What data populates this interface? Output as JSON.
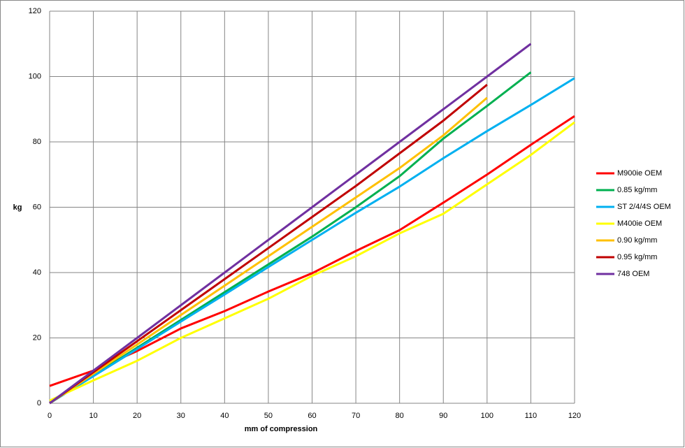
{
  "chart_data": {
    "type": "line",
    "x_label": "mm of compression",
    "y_label": "kg",
    "x": [
      0,
      10,
      20,
      30,
      40,
      50,
      60,
      70,
      80,
      90,
      100,
      110,
      120
    ],
    "xlim": [
      0,
      120
    ],
    "xticks": [
      0,
      10,
      20,
      30,
      40,
      50,
      60,
      70,
      80,
      90,
      100,
      110,
      120
    ],
    "ylim": [
      0,
      120
    ],
    "yticks": [
      0,
      20,
      40,
      60,
      80,
      100,
      120
    ],
    "grid": true,
    "legend": "right",
    "series": [
      {
        "name": "M900ie OEM",
        "color": "#ff0000",
        "values": [
          5.3,
          10,
          16,
          22.9,
          28.2,
          34.2,
          39.8,
          46.6,
          53,
          61.4,
          70,
          79.1,
          87.9
        ]
      },
      {
        "name": "0.85 kg/mm",
        "color": "#00b050",
        "values": [
          0,
          8.5,
          17,
          25.5,
          34,
          42.5,
          51,
          60,
          69.5,
          81,
          91,
          101.3,
          null
        ]
      },
      {
        "name": "ST 2/4/4S OEM",
        "color": "#00b0f0",
        "values": [
          0,
          8.3,
          16.6,
          25,
          33.3,
          41.7,
          50,
          58.3,
          66.3,
          75,
          83.3,
          91.3,
          99.5
        ]
      },
      {
        "name": "M400ie OEM",
        "color": "#ffff00",
        "values": [
          0.8,
          7,
          13,
          20,
          26,
          32,
          39,
          45,
          52,
          58,
          67,
          76,
          86
        ]
      },
      {
        "name": "0.90 kg/mm",
        "color": "#ffc000",
        "values": [
          0,
          9,
          18,
          27,
          36,
          45,
          54,
          63,
          72,
          82,
          93.5,
          null,
          null
        ]
      },
      {
        "name": "0.95 kg/mm",
        "color": "#c00000",
        "values": [
          0,
          9.5,
          19,
          28.5,
          38,
          47.5,
          57,
          66.5,
          76.5,
          86.5,
          97.5,
          null,
          null
        ]
      },
      {
        "name": "748 OEM",
        "color": "#7030a0",
        "values": [
          0,
          10,
          20,
          30,
          40,
          50,
          60,
          70,
          80,
          90,
          100,
          110,
          null
        ]
      }
    ]
  }
}
